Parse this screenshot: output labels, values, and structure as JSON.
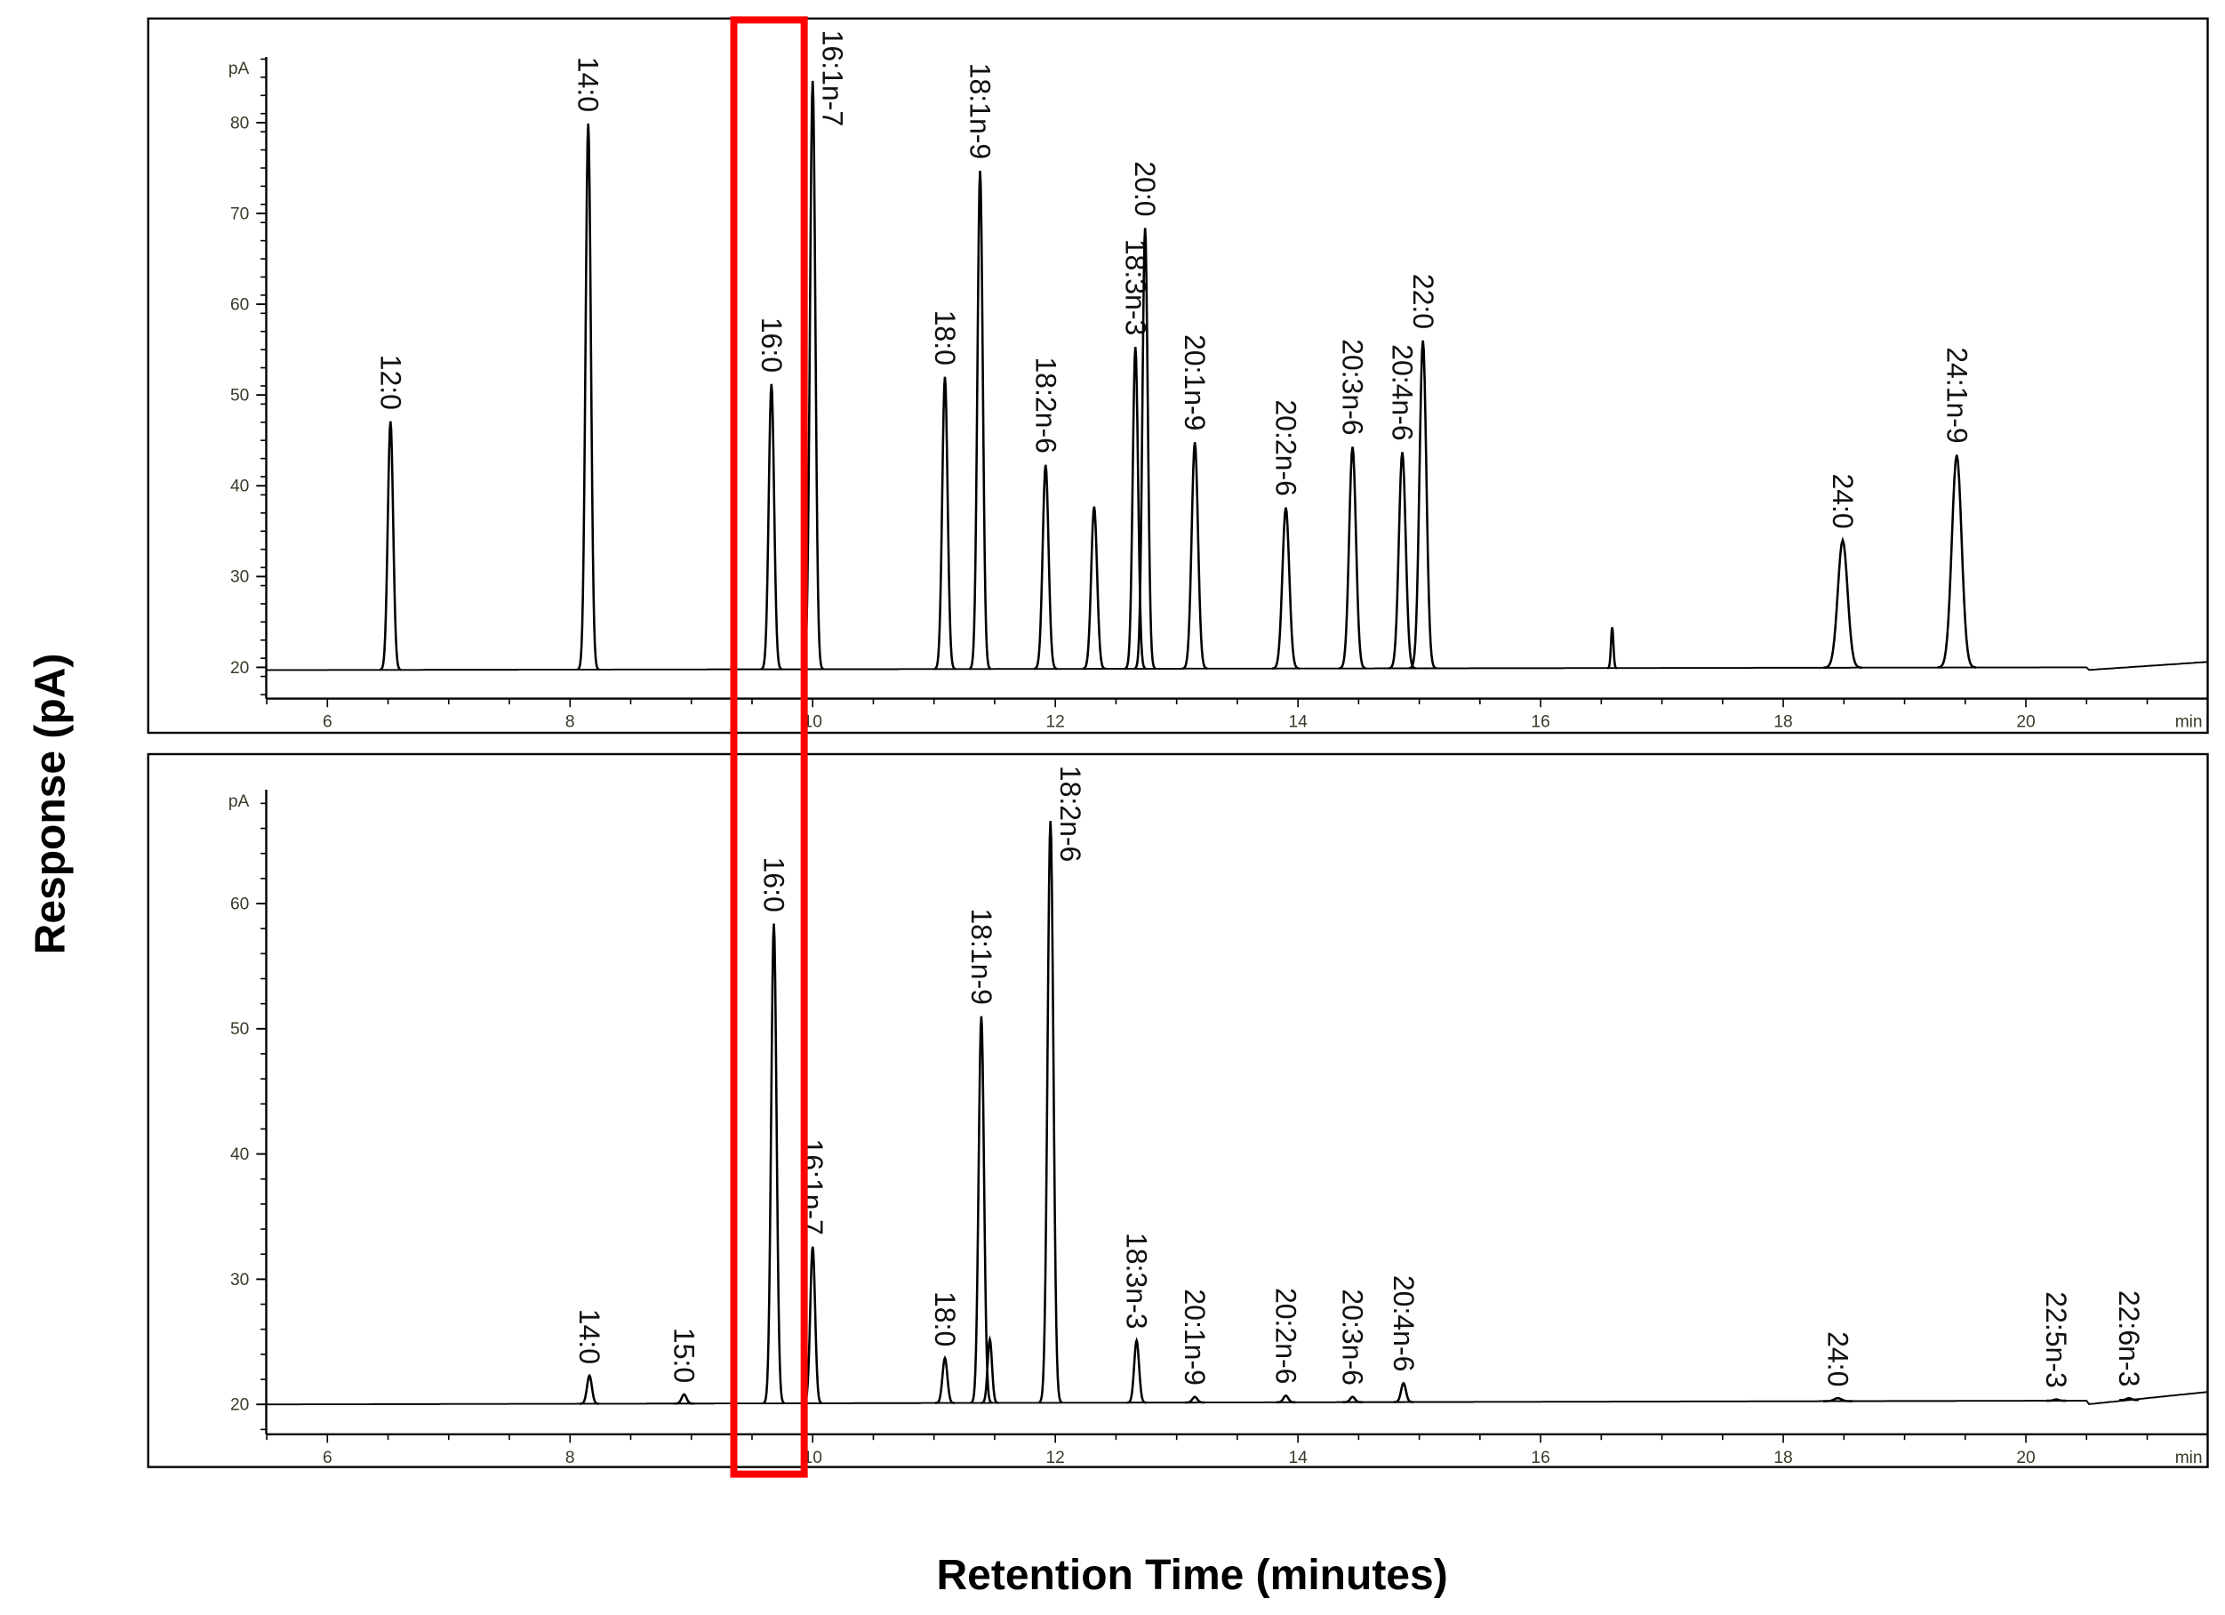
{
  "figure": {
    "ylabel": "Response (pA)",
    "xlabel": "Retention Time (minutes)",
    "highlight": {
      "rt_range": [
        9.35,
        9.93
      ],
      "color": "#ff0000"
    }
  },
  "chart_data": [
    {
      "type": "line",
      "panel": "top",
      "y_unit": "pA",
      "x_unit": "min",
      "xlim": [
        5.5,
        21.5
      ],
      "ylim": [
        16.6,
        87
      ],
      "x_ticks": [
        "6",
        "8",
        "10",
        "12",
        "14",
        "16",
        "18",
        "20"
      ],
      "y_ticks": [
        "20",
        "30",
        "40",
        "50",
        "60",
        "70",
        "80"
      ],
      "baseline": 19.7,
      "baseline_end": 20.6,
      "peaks": [
        {
          "label": "12:0",
          "rt": 6.52,
          "height": 47.1,
          "w": 0.022
        },
        {
          "label": "14:0",
          "rt": 8.15,
          "height": 79.9,
          "w": 0.022
        },
        {
          "label": "16:0",
          "rt": 9.66,
          "height": 51.2,
          "w": 0.022
        },
        {
          "label": "16:1n-7",
          "rt": 10.0,
          "height": 84.6,
          "w": 0.022
        },
        {
          "label": "18:0",
          "rt": 11.09,
          "height": 52.0,
          "w": 0.022
        },
        {
          "label": "18:1n-9",
          "rt": 11.38,
          "height": 74.7,
          "w": 0.022
        },
        {
          "label": "18:2n-6",
          "rt": 11.92,
          "height": 42.3,
          "w": 0.024
        },
        {
          "label": "",
          "rt": 12.32,
          "height": 37.7,
          "w": 0.024
        },
        {
          "label": "18:3n-3",
          "rt": 12.66,
          "height": 55.3,
          "w": 0.022
        },
        {
          "label": "20:0",
          "rt": 12.74,
          "height": 68.4,
          "w": 0.022
        },
        {
          "label": "20:1n-9",
          "rt": 13.15,
          "height": 44.8,
          "w": 0.026
        },
        {
          "label": "20:2n-6",
          "rt": 13.9,
          "height": 37.6,
          "w": 0.028
        },
        {
          "label": "20:3n-6",
          "rt": 14.45,
          "height": 44.3,
          "w": 0.028
        },
        {
          "label": "20:4n-6",
          "rt": 14.86,
          "height": 43.7,
          "w": 0.028
        },
        {
          "label": "22:0",
          "rt": 15.03,
          "height": 56.0,
          "w": 0.028
        },
        {
          "label": "",
          "rt": 16.59,
          "height": 24.4,
          "w": 0.01
        },
        {
          "label": "24:0",
          "rt": 18.49,
          "height": 34.0,
          "w": 0.04
        },
        {
          "label": "24:1n-9",
          "rt": 19.43,
          "height": 43.4,
          "w": 0.04
        }
      ]
    },
    {
      "type": "line",
      "panel": "bottom",
      "y_unit": "pA",
      "x_unit": "min",
      "xlim": [
        5.5,
        21.5
      ],
      "ylim": [
        17.6,
        69
      ],
      "x_ticks": [
        "6",
        "8",
        "10",
        "12",
        "14",
        "16",
        "18",
        "20"
      ],
      "y_ticks": [
        "20",
        "30",
        "40",
        "50",
        "60"
      ],
      "baseline": 20.0,
      "baseline_end": 21.0,
      "peaks": [
        {
          "label": "14:0",
          "rt": 8.16,
          "height": 22.3,
          "w": 0.02
        },
        {
          "label": "15:0",
          "rt": 8.94,
          "height": 20.8,
          "w": 0.02
        },
        {
          "label": "16:0",
          "rt": 9.68,
          "height": 58.4,
          "w": 0.022
        },
        {
          "label": "16:1n-7",
          "rt": 10.0,
          "height": 32.6,
          "w": 0.02
        },
        {
          "label": "18:0",
          "rt": 11.09,
          "height": 23.7,
          "w": 0.02
        },
        {
          "label": "18:1n-9",
          "rt": 11.39,
          "height": 51.0,
          "w": 0.022
        },
        {
          "label": "",
          "rt": 11.46,
          "height": 25.2,
          "w": 0.018
        },
        {
          "label": "18:2n-6",
          "rt": 11.96,
          "height": 66.6,
          "w": 0.024
        },
        {
          "label": "18:3n-3",
          "rt": 12.67,
          "height": 25.1,
          "w": 0.02
        },
        {
          "label": "20:1n-9",
          "rt": 13.15,
          "height": 20.6,
          "w": 0.02
        },
        {
          "label": "20:2n-6",
          "rt": 13.9,
          "height": 20.7,
          "w": 0.02
        },
        {
          "label": "20:3n-6",
          "rt": 14.45,
          "height": 20.6,
          "w": 0.02
        },
        {
          "label": "20:4n-6",
          "rt": 14.87,
          "height": 21.7,
          "w": 0.02
        },
        {
          "label": "24:0",
          "rt": 18.45,
          "height": 20.5,
          "w": 0.03
        },
        {
          "label": "22:5n-3",
          "rt": 20.25,
          "height": 20.4,
          "w": 0.02
        },
        {
          "label": "22:6n-3",
          "rt": 20.85,
          "height": 20.5,
          "w": 0.02
        }
      ]
    }
  ]
}
